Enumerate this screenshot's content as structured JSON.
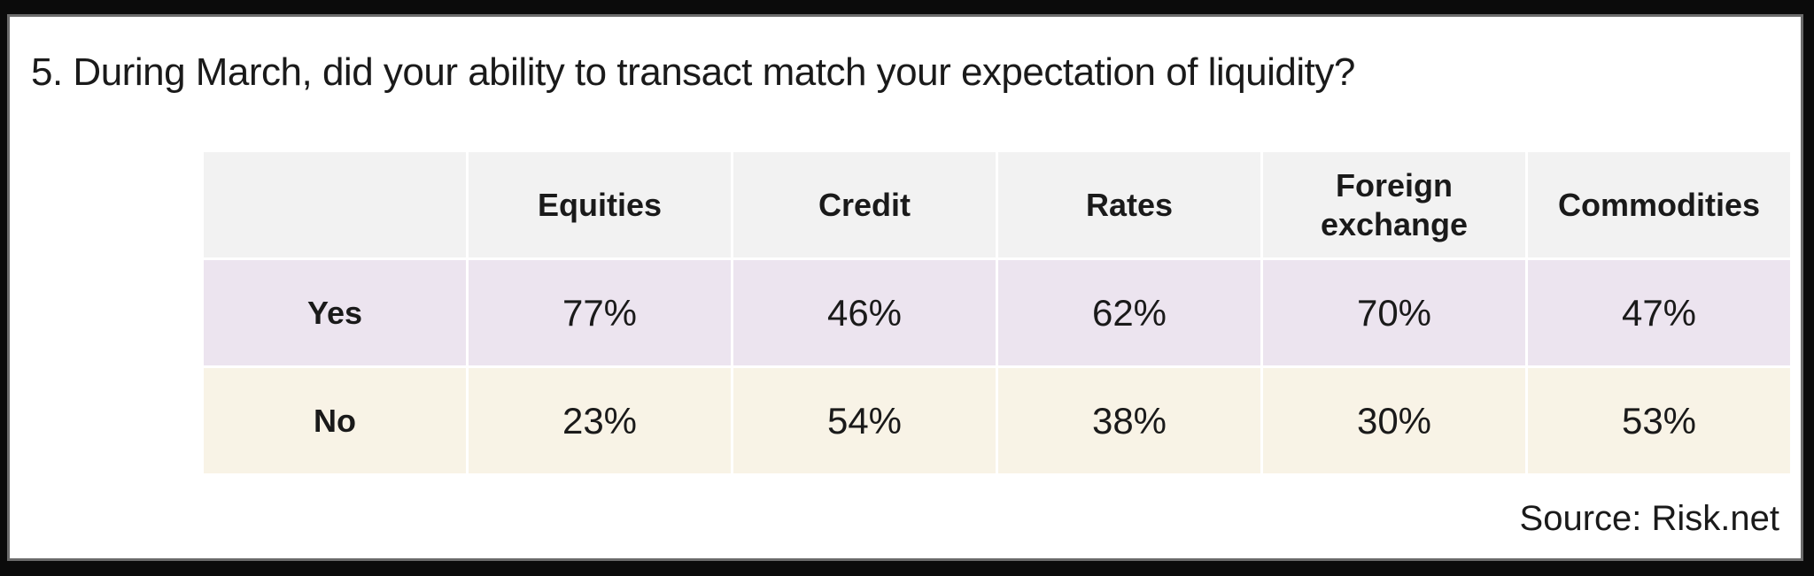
{
  "chart_data": {
    "type": "table",
    "title": "5. During March, did your ability to transact match your expectation of liquidity?",
    "columns": [
      "Equities",
      "Credit",
      "Rates",
      "Foreign exchange",
      "Commodities"
    ],
    "rows": [
      {
        "label": "Yes",
        "values": [
          "77%",
          "46%",
          "62%",
          "70%",
          "47%"
        ]
      },
      {
        "label": "No",
        "values": [
          "23%",
          "54%",
          "38%",
          "30%",
          "53%"
        ]
      }
    ],
    "source": "Source: Risk.net",
    "colors": {
      "header_bg": "#f2f2f2",
      "yes_bg": "#ece4ef",
      "no_bg": "#f8f3e6",
      "border": "#6b6b6b"
    }
  }
}
